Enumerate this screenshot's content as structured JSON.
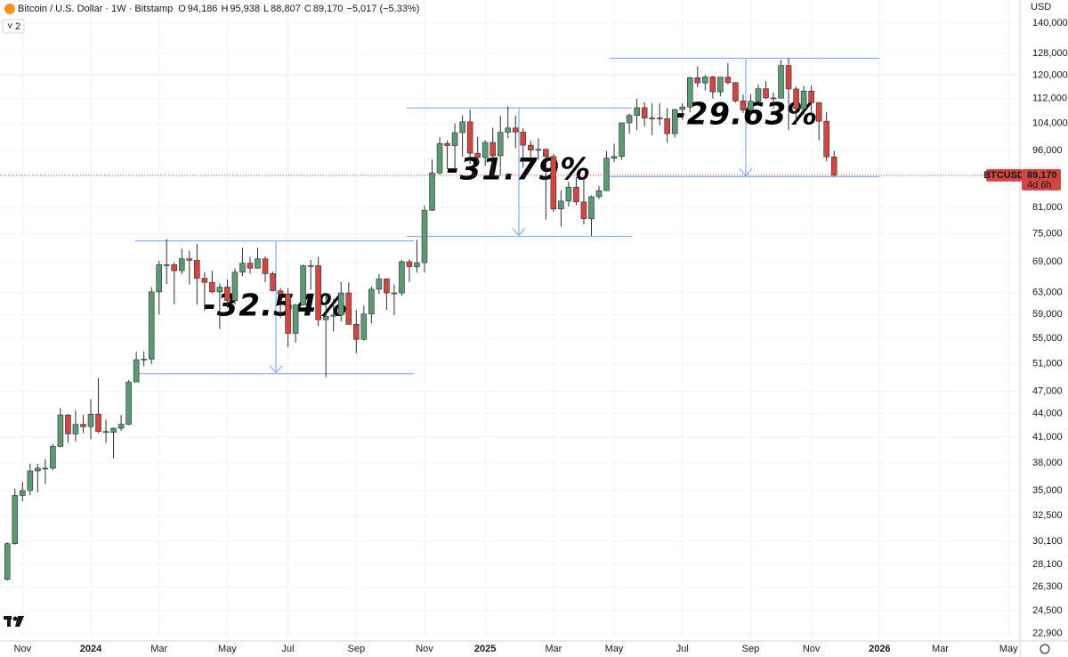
{
  "header": {
    "title": "Bitcoin / U.S. Dollar · 1W · Bitstamp",
    "ohlc": [
      {
        "key": "O",
        "value": "94,186"
      },
      {
        "key": "H",
        "value": "95,938"
      },
      {
        "key": "L",
        "value": "88,807"
      },
      {
        "key": "C",
        "value": "89,170"
      }
    ],
    "change": "−5,017 (−5.33%)",
    "indicators": "2"
  },
  "chart_data": {
    "type": "candlestick",
    "currency": "USD",
    "log_scale": true,
    "grid": true,
    "up_color": "#5b9a72",
    "down_color": "#d2463f",
    "categories": [
      null,
      null,
      "Nov",
      null,
      null,
      null,
      null,
      null,
      null,
      null,
      null,
      "2024",
      null,
      null,
      null,
      null,
      null,
      null,
      null,
      null,
      "Mar",
      null,
      null,
      null,
      null,
      null,
      null,
      null,
      null,
      "May",
      null,
      null,
      null,
      null,
      null,
      null,
      null,
      "Jul",
      null,
      null,
      null,
      null,
      null,
      null,
      null,
      null,
      "Sep",
      null,
      null,
      null,
      null,
      null,
      null,
      null,
      null,
      "Nov",
      null,
      null,
      null,
      null,
      null,
      null,
      null,
      "2025",
      null,
      null,
      null,
      null,
      null,
      null,
      null,
      null,
      "Mar",
      null,
      null,
      null,
      null,
      null,
      null,
      null,
      "May",
      null,
      null,
      null,
      null,
      null,
      null,
      null,
      null,
      "Jul",
      null,
      null,
      null,
      null,
      null,
      null,
      null,
      null,
      "Sep",
      null,
      null,
      null,
      null,
      null,
      null,
      null,
      "Nov",
      null,
      null,
      null,
      null,
      null,
      null,
      null,
      null,
      "2026",
      null,
      null,
      null,
      null,
      null,
      null,
      null,
      "Mar",
      null,
      null,
      null,
      null,
      null,
      null,
      null,
      null,
      "May",
      null
    ],
    "open": [
      26900,
      29900,
      34500,
      35000,
      37100,
      37400,
      37400,
      39900,
      43800,
      41400,
      42600,
      42300,
      43900,
      41700,
      41600,
      42100,
      42600,
      48300,
      51600,
      51700,
      63100,
      68400,
      68400,
      67200,
      69600,
      69300,
      65700,
      64900,
      63100,
      64000,
      61500,
      66900,
      68700,
      67700,
      69600,
      66600,
      63300,
      62700,
      55800,
      60700,
      68200,
      68200,
      58100,
      58700,
      58900,
      62900,
      57300,
      54800,
      59100,
      63600,
      65600,
      62900,
      62900,
      69000,
      68000,
      68800,
      80400,
      89800,
      98000,
      97400,
      101200,
      104500,
      95200,
      94000,
      98300,
      94500,
      101300,
      102600,
      101400,
      97500,
      96100,
      96300,
      94300,
      80700,
      82600,
      86100,
      82400,
      78400,
      83700,
      85200,
      93800,
      94300,
      104200,
      106500,
      109000,
      105700,
      105700,
      105500,
      100900,
      108400,
      109200,
      119100,
      117300,
      119400,
      114200,
      119300,
      117400,
      111200,
      108200,
      111100,
      115300,
      112200,
      112100,
      123500,
      115200,
      108600,
      114500,
      110600,
      104700,
      94186,
      null,
      null,
      null,
      null,
      null,
      null,
      null,
      null,
      null,
      null,
      null,
      null,
      null,
      null,
      null,
      null,
      null,
      null,
      null,
      null,
      null,
      null,
      null,
      null
    ],
    "high": [
      30000,
      35200,
      35900,
      37900,
      37900,
      38400,
      40200,
      44700,
      43900,
      44400,
      43800,
      45900,
      48900,
      43200,
      42200,
      43800,
      48600,
      52800,
      52900,
      64000,
      69200,
      73800,
      68900,
      71700,
      71300,
      72800,
      66900,
      67200,
      64700,
      65500,
      67700,
      71900,
      70000,
      71900,
      70100,
      67000,
      63800,
      63800,
      60900,
      68400,
      69400,
      70000,
      62700,
      61800,
      65000,
      64900,
      59800,
      60600,
      64100,
      66500,
      65600,
      64500,
      69400,
      69500,
      73600,
      81500,
      93500,
      99800,
      98900,
      104000,
      106500,
      108300,
      99900,
      99000,
      102700,
      106400,
      109400,
      106500,
      102500,
      98800,
      99500,
      96500,
      95000,
      85300,
      87500,
      88700,
      88500,
      84000,
      86400,
      95800,
      97900,
      104300,
      107100,
      111900,
      110700,
      110500,
      110500,
      108900,
      108600,
      110500,
      119500,
      123200,
      120200,
      119800,
      119300,
      124400,
      117600,
      113300,
      113400,
      116800,
      117900,
      114000,
      125600,
      126200,
      116000,
      116300,
      116400,
      110800,
      107500,
      95938,
      null,
      null,
      null,
      null,
      null,
      null,
      null,
      null,
      null,
      null,
      null,
      null,
      null,
      null,
      null,
      null,
      null,
      null,
      null,
      null,
      null,
      null,
      null,
      null
    ],
    "low": [
      26800,
      29800,
      33900,
      34500,
      34800,
      35700,
      37200,
      39800,
      40300,
      40500,
      41500,
      40800,
      41500,
      40300,
      38500,
      41800,
      42500,
      48300,
      50600,
      50900,
      59000,
      64600,
      60800,
      66500,
      64500,
      60800,
      59700,
      62800,
      56500,
      60200,
      60800,
      66100,
      66600,
      67600,
      64900,
      63200,
      58400,
      53500,
      54300,
      60600,
      63500,
      57000,
      49000,
      56100,
      57800,
      57300,
      52600,
      54600,
      57500,
      62700,
      59800,
      58900,
      62400,
      65000,
      66800,
      66800,
      80200,
      89400,
      90800,
      90500,
      94200,
      92200,
      92500,
      91700,
      89200,
      89200,
      99500,
      96600,
      91200,
      94100,
      93400,
      78200,
      80000,
      76600,
      81300,
      81600,
      77100,
      74500,
      83100,
      85100,
      92800,
      93400,
      100800,
      102000,
      103100,
      100400,
      103400,
      98200,
      99700,
      105100,
      107500,
      115800,
      114700,
      112000,
      112700,
      116800,
      110700,
      107300,
      107300,
      110600,
      111700,
      108700,
      112000,
      102000,
      103500,
      106700,
      106300,
      98900,
      93000,
      88807,
      null,
      null,
      null,
      null,
      null,
      null,
      null,
      null,
      null,
      null,
      null,
      null,
      null,
      null,
      null,
      null,
      null,
      null,
      null,
      null,
      null,
      null,
      null,
      null
    ],
    "close": [
      29900,
      34500,
      35000,
      37100,
      37400,
      37400,
      39900,
      43800,
      41400,
      42600,
      42300,
      43900,
      41700,
      41600,
      42100,
      42600,
      48300,
      51600,
      51700,
      63100,
      68400,
      68400,
      67200,
      69600,
      69300,
      65700,
      64900,
      63100,
      64000,
      61500,
      66900,
      68700,
      67700,
      69600,
      66600,
      63300,
      62700,
      55800,
      60700,
      68200,
      68200,
      58100,
      58700,
      58900,
      62900,
      57300,
      54800,
      59100,
      63600,
      65600,
      62900,
      62900,
      69000,
      68000,
      68800,
      80400,
      89800,
      98000,
      97400,
      101200,
      104500,
      95200,
      94000,
      98300,
      94500,
      101300,
      102600,
      101400,
      97500,
      96100,
      96300,
      94300,
      80700,
      82600,
      86100,
      82400,
      78400,
      83700,
      85200,
      93800,
      94300,
      104200,
      106500,
      109000,
      105700,
      105700,
      105500,
      100900,
      108400,
      109200,
      119100,
      117300,
      119400,
      114200,
      119300,
      117400,
      111200,
      108200,
      111100,
      115300,
      112200,
      112100,
      123500,
      115200,
      108600,
      114500,
      110600,
      104700,
      94186,
      89170,
      null,
      null,
      null,
      null,
      null,
      null,
      null,
      null,
      null,
      null,
      null,
      null,
      null,
      null,
      null,
      null,
      null,
      null,
      null,
      null,
      null,
      null,
      null,
      null
    ],
    "ylim": [
      22400,
      150000
    ],
    "yticks": [
      {
        "value": 22900,
        "label": "22,900"
      },
      {
        "value": 24500,
        "label": "24,500"
      },
      {
        "value": 26300,
        "label": "26,300"
      },
      {
        "value": 28100,
        "label": "28,100"
      },
      {
        "value": 30100,
        "label": "30,100"
      },
      {
        "value": 32500,
        "label": "32,500"
      },
      {
        "value": 35000,
        "label": "35,000"
      },
      {
        "value": 38000,
        "label": "38,000"
      },
      {
        "value": 41000,
        "label": "41,000"
      },
      {
        "value": 44000,
        "label": "44,000"
      },
      {
        "value": 47000,
        "label": "47,000"
      },
      {
        "value": 51000,
        "label": "51,000"
      },
      {
        "value": 55000,
        "label": "55,000"
      },
      {
        "value": 59000,
        "label": "59,000"
      },
      {
        "value": 63000,
        "label": "63,000"
      },
      {
        "value": 69000,
        "label": "69,000"
      },
      {
        "value": 75000,
        "label": "75,000"
      },
      {
        "value": 81000,
        "label": "81,000"
      },
      {
        "value": 96000,
        "label": "96,000"
      },
      {
        "value": 104000,
        "label": "104,000"
      },
      {
        "value": 112000,
        "label": "112,000"
      },
      {
        "value": 120000,
        "label": "120,000"
      },
      {
        "value": 128000,
        "label": "128,000"
      },
      {
        "value": 140000,
        "label": "140,000"
      }
    ],
    "price_tag": {
      "symbol": "BTCUSD",
      "price": "89,170",
      "countdown": "4d 6h"
    },
    "drawings": [
      {
        "label": "-32.54%",
        "top": 73400,
        "bottom": 49500
      },
      {
        "label": "-31.79%",
        "top": 108900,
        "bottom": 74400
      },
      {
        "label": "-29.63%",
        "top": 126200,
        "bottom": 88800
      }
    ]
  }
}
